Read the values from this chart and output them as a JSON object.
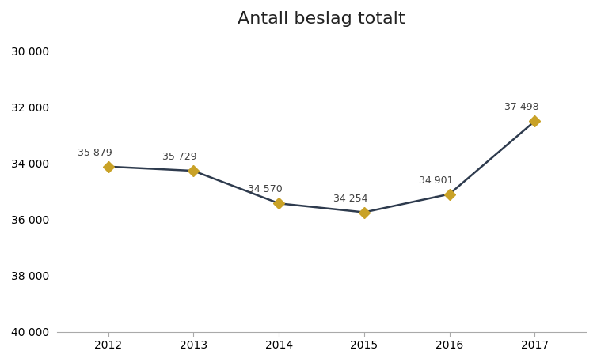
{
  "title": "Antall beslag totalt",
  "years": [
    2012,
    2013,
    2014,
    2015,
    2016,
    2017
  ],
  "values": [
    35879,
    35729,
    34570,
    34254,
    34901,
    37498
  ],
  "labels": [
    "35 879",
    "35 729",
    "34 570",
    "34 254",
    "34 901",
    "37 498"
  ],
  "ytick_labels": [
    "40 000",
    "38 000",
    "36 000",
    "34 000",
    "32 000",
    "30 000"
  ],
  "line_color": "#2e3b4e",
  "marker_color": "#c9a227",
  "marker_style": "D",
  "marker_size": 7,
  "line_width": 1.8,
  "ylim": [
    30000,
    40500
  ],
  "yticks": [
    30000,
    32000,
    34000,
    36000,
    38000,
    40000
  ],
  "background_color": "#ffffff",
  "title_fontsize": 16,
  "label_fontsize": 9,
  "tick_fontsize": 10,
  "annotation_color": "#404040",
  "spine_color": "#aaaaaa"
}
